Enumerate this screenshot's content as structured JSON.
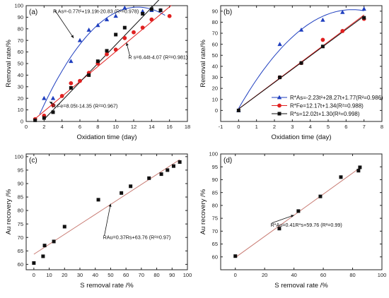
{
  "chart_data": [
    {
      "panel_label": "(a)",
      "type": "scatter",
      "xlabel": "Oxidation time  (day)",
      "ylabel": "Removal rate/%",
      "xlim": [
        0,
        18
      ],
      "ylim": [
        0,
        100
      ],
      "xticks": [
        "0",
        "2",
        "4",
        "6",
        "8",
        "10",
        "12",
        "14",
        "16",
        "18"
      ],
      "yticks": [
        "0",
        "10",
        "20",
        "30",
        "40",
        "50",
        "60",
        "70",
        "80",
        "90",
        "100"
      ],
      "series": [
        {
          "marker": "triangle",
          "color": "#1f3fbf",
          "x": [
            2,
            3,
            5,
            6,
            7,
            8,
            9,
            10,
            11,
            13,
            14,
            15
          ],
          "y": [
            20,
            20,
            52,
            70,
            79,
            83,
            88,
            91,
            98,
            95,
            96,
            96
          ],
          "fit": {
            "kind": "quad",
            "a": -0.77,
            "b": 19.19,
            "c": -20.83,
            "x": [
              1.5,
              15.5
            ]
          },
          "annotation": {
            "text": "R As=-0.77t²+19.19t-20.83 (R²=0.978)",
            "tx": 3.0,
            "ty": 93.5,
            "ax": 5.3,
            "ay": 72
          }
        },
        {
          "marker": "circle",
          "color": "#e02020",
          "x": [
            1,
            2,
            3,
            4,
            5,
            6,
            7,
            8,
            9,
            10,
            11,
            12,
            13,
            14,
            16
          ],
          "y": [
            2,
            5,
            14,
            22,
            33,
            35,
            42,
            50,
            58,
            62,
            72,
            77,
            81,
            88,
            91
          ],
          "fit": {
            "kind": "lin",
            "a": 6.44,
            "b": -4.07,
            "x": [
              0.8,
              16.2
            ]
          },
          "annotation": {
            "text": "R s=6.44t-4.07 (R²=0.981)",
            "tx": 11.4,
            "ty": 54,
            "ax": 11.2,
            "ay": 68
          }
        },
        {
          "marker": "square",
          "color": "#111111",
          "x": [
            1,
            2,
            3,
            5,
            7,
            8,
            9,
            10,
            11,
            13,
            14,
            15
          ],
          "y": [
            1,
            3,
            8,
            29,
            40,
            52,
            61,
            75,
            81,
            93,
            97,
            96
          ],
          "fit": {
            "kind": "lin",
            "a": 8.05,
            "b": -14.35,
            "x": [
              2,
              15.5
            ]
          },
          "annotation": {
            "text": "R Fe=8.05t-14.35 (R²=0.967)",
            "tx": 2.9,
            "ty": 12,
            "ax": 2.6,
            "ay": 17
          }
        }
      ]
    },
    {
      "panel_label": "(b)",
      "type": "scatter",
      "xlabel": "Oxidation time (day)",
      "ylabel": "Removal rate/%",
      "xlim": [
        -1,
        8
      ],
      "ylim": [
        -10,
        95
      ],
      "xticks": [
        "-1",
        "0",
        "1",
        "2",
        "3",
        "4",
        "5",
        "6",
        "7",
        "8"
      ],
      "yticks": [
        "0",
        "10",
        "20",
        "30",
        "40",
        "50",
        "60",
        "70",
        "80",
        "90"
      ],
      "series": [
        {
          "marker": "triangle",
          "color": "#1f3fbf",
          "x": [
            0,
            2.3,
            3.5,
            4.7,
            5.8,
            7
          ],
          "y": [
            0,
            60,
            73,
            82,
            89,
            92
          ],
          "fit": {
            "kind": "quad",
            "a": -2.23,
            "b": 28.27,
            "c": 1.77,
            "x": [
              0,
              7
            ]
          }
        },
        {
          "marker": "circle",
          "color": "#e02020",
          "x": [
            2.3,
            3.5,
            4.7,
            5.8,
            7
          ],
          "y": [
            30,
            43,
            64,
            72,
            83
          ],
          "fit": {
            "kind": "lin",
            "a": 12.17,
            "b": 1.34,
            "x": [
              0,
              7
            ]
          }
        },
        {
          "marker": "square",
          "color": "#111111",
          "x": [
            0,
            2.3,
            3.5,
            4.7,
            7
          ],
          "y": [
            0,
            30,
            43,
            58,
            84
          ],
          "fit": {
            "kind": "lin",
            "a": 12.02,
            "b": 1.3,
            "x": [
              0,
              7
            ]
          }
        }
      ],
      "legend": [
        {
          "text": "R*As=-2.23t²+28.27t+1.77(R²=0.986)",
          "color": "#1f3fbf",
          "marker": "triangle"
        },
        {
          "text": "R*Fe=12.17t+1.34(R²=0.988)",
          "color": "#e02020",
          "marker": "circle"
        },
        {
          "text": "R*s=12.02t+1.30(R²=0.998)",
          "color": "#111111",
          "marker": "square"
        }
      ],
      "legend_position": "bottom-right"
    },
    {
      "panel_label": "(c)",
      "type": "scatter",
      "xlabel": "S removal rate /%",
      "ylabel": "Au recovery /%",
      "xlim": [
        -5,
        100
      ],
      "ylim": [
        58,
        101
      ],
      "xticks": [
        "0",
        "10",
        "20",
        "30",
        "40",
        "50",
        "60",
        "70",
        "80",
        "90",
        "100"
      ],
      "yticks": [
        "60",
        "65",
        "70",
        "75",
        "80",
        "85",
        "90",
        "95",
        "100"
      ],
      "series": [
        {
          "marker": "square",
          "color": "#111111",
          "x": [
            0,
            6,
            7,
            13,
            20,
            42,
            57,
            63,
            75,
            83,
            87,
            91,
            95
          ],
          "y": [
            60.5,
            63,
            67,
            68.5,
            74,
            84,
            86.5,
            89,
            92,
            93.5,
            95,
            96.5,
            98
          ],
          "fit": {
            "kind": "lin",
            "a": 0.37,
            "b": 63.76,
            "x": [
              0,
              95
            ]
          },
          "annotation": {
            "text": "RAu=0.37Rs+63.76 (R²=0.97)",
            "tx": 45,
            "ty": 69.4,
            "ax": 50,
            "ay": 82.5
          }
        }
      ]
    },
    {
      "panel_label": "(d)",
      "type": "scatter",
      "xlabel": "S removal rate /%",
      "ylabel": "Au recovery /%",
      "xlim": [
        -10,
        100
      ],
      "ylim": [
        55,
        100
      ],
      "xticks": [
        "0",
        "20",
        "40",
        "60",
        "80",
        "100"
      ],
      "yticks": [
        "60",
        "65",
        "70",
        "75",
        "80",
        "85",
        "90",
        "95",
        "100"
      ],
      "series": [
        {
          "marker": "square",
          "color": "#111111",
          "x": [
            0,
            30,
            43,
            58,
            72,
            84,
            85
          ],
          "y": [
            60.3,
            71,
            77.8,
            83.5,
            91,
            93.5,
            94.8
          ],
          "fit": {
            "kind": "lin",
            "a": 0.41,
            "b": 59.76,
            "x": [
              0,
              85
            ]
          },
          "annotation": {
            "text": "R*Au=0.41R*s+59.76 (R²=0.99)",
            "tx": 24,
            "ty": 71.8,
            "ax": 40,
            "ay": 76.2
          }
        }
      ]
    }
  ]
}
